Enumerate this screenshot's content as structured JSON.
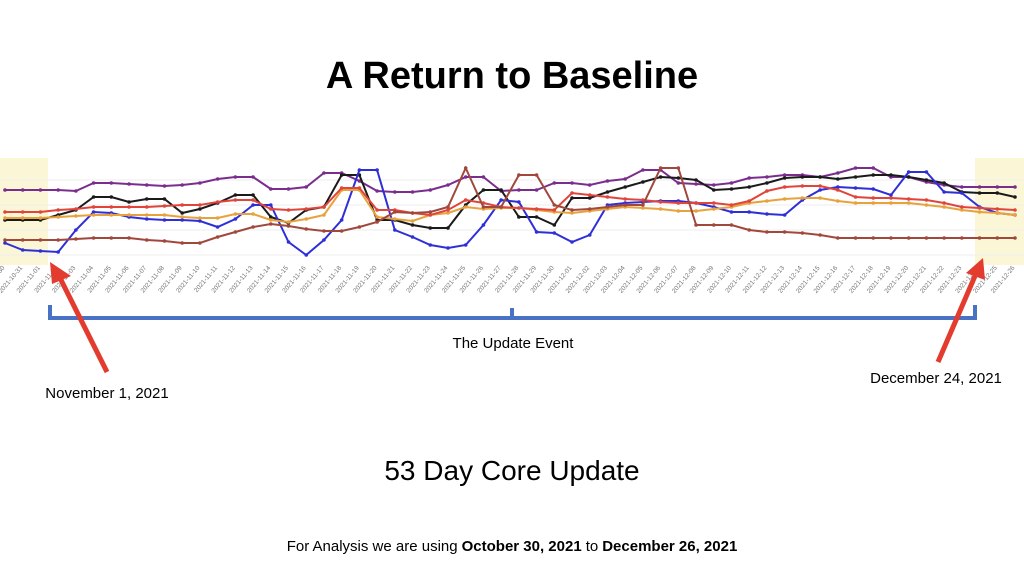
{
  "slide": {
    "title": "A Return to Baseline",
    "bracket_label": "The Update Event",
    "annotations": [
      "November 1, 2021",
      "December 24, 2021"
    ],
    "subtitle": "53 Day Core Update",
    "footer": {
      "prefix": "For Analysis we are using",
      "start": "October 30, 2021",
      "joiner": "to",
      "end": "December 26, 2021"
    }
  },
  "chart_data": {
    "type": "line",
    "ylim": [
      0,
      105
    ],
    "x": [
      "2021-10-30",
      "2021-10-31",
      "2021-11-01",
      "2021-11-02",
      "2021-11-03",
      "2021-11-04",
      "2021-11-05",
      "2021-11-06",
      "2021-11-07",
      "2021-11-08",
      "2021-11-09",
      "2021-11-10",
      "2021-11-11",
      "2021-11-12",
      "2021-11-13",
      "2021-11-14",
      "2021-11-15",
      "2021-11-16",
      "2021-11-17",
      "2021-11-18",
      "2021-11-19",
      "2021-11-20",
      "2021-11-21",
      "2021-11-22",
      "2021-11-23",
      "2021-11-24",
      "2021-11-25",
      "2021-11-26",
      "2021-11-27",
      "2021-11-28",
      "2021-11-29",
      "2021-11-30",
      "2021-12-01",
      "2021-12-02",
      "2021-12-03",
      "2021-12-04",
      "2021-12-05",
      "2021-12-06",
      "2021-12-07",
      "2021-12-08",
      "2021-12-09",
      "2021-12-10",
      "2021-12-11",
      "2021-12-12",
      "2021-12-13",
      "2021-12-14",
      "2021-12-15",
      "2021-12-16",
      "2021-12-17",
      "2021-12-18",
      "2021-12-19",
      "2021-12-20",
      "2021-12-21",
      "2021-12-22",
      "2021-12-23",
      "2021-12-24",
      "2021-12-25",
      "2021-12-26"
    ],
    "series": [
      {
        "color": "#7b2d8e",
        "values": [
          75,
          75,
          75,
          75,
          74,
          82,
          82,
          81,
          80,
          79,
          80,
          82,
          86,
          88,
          88,
          76,
          76,
          78,
          92,
          92,
          84,
          74,
          73,
          73,
          75,
          80,
          88,
          88,
          74,
          75,
          75,
          82,
          82,
          80,
          84,
          86,
          95,
          95,
          82,
          81,
          80,
          82,
          87,
          88,
          90,
          90,
          88,
          92,
          97,
          97,
          88,
          88,
          83,
          80,
          78,
          78,
          78,
          78
        ]
      },
      {
        "color": "#1a1a1a",
        "values": [
          45,
          45,
          45,
          50,
          55,
          68,
          68,
          63,
          66,
          66,
          52,
          56,
          62,
          70,
          70,
          48,
          42,
          55,
          58,
          90,
          90,
          45,
          45,
          40,
          37,
          37,
          60,
          75,
          75,
          48,
          48,
          40,
          67,
          67,
          73,
          78,
          83,
          88,
          87,
          85,
          75,
          76,
          78,
          82,
          87,
          88,
          88,
          86,
          88,
          90,
          90,
          88,
          85,
          82,
          73,
          72,
          72,
          68
        ]
      },
      {
        "color": "#2f2fd8",
        "values": [
          22,
          15,
          14,
          13,
          35,
          53,
          52,
          48,
          46,
          45,
          45,
          44,
          38,
          46,
          60,
          60,
          23,
          10,
          25,
          45,
          95,
          95,
          35,
          28,
          20,
          17,
          20,
          40,
          65,
          63,
          33,
          32,
          23,
          30,
          60,
          62,
          63,
          64,
          64,
          62,
          58,
          53,
          53,
          51,
          50,
          65,
          75,
          78,
          77,
          76,
          70,
          93,
          93,
          73,
          72,
          58,
          52,
          50
        ]
      },
      {
        "color": "#e8a23c",
        "values": [
          47,
          47,
          47,
          48,
          49,
          50,
          50,
          50,
          50,
          50,
          48,
          47,
          47,
          51,
          51,
          45,
          43,
          46,
          50,
          75,
          75,
          48,
          46,
          44,
          50,
          52,
          58,
          56,
          57,
          57,
          55,
          53,
          52,
          54,
          56,
          58,
          57,
          56,
          54,
          54,
          56,
          58,
          62,
          64,
          66,
          67,
          67,
          64,
          62,
          62,
          62,
          62,
          60,
          58,
          55,
          53,
          52,
          50
        ]
      },
      {
        "color": "#e0443a",
        "values": [
          53,
          53,
          53,
          55,
          56,
          58,
          58,
          58,
          58,
          59,
          60,
          60,
          63,
          65,
          65,
          56,
          55,
          56,
          58,
          77,
          77,
          55,
          55,
          52,
          50,
          55,
          65,
          62,
          58,
          57,
          56,
          55,
          72,
          70,
          68,
          66,
          65,
          63,
          62,
          62,
          62,
          60,
          64,
          74,
          78,
          79,
          79,
          75,
          68,
          67,
          67,
          66,
          65,
          62,
          58,
          57,
          56,
          55
        ]
      },
      {
        "color": "#a0483c",
        "values": [
          25,
          25,
          25,
          25,
          26,
          27,
          27,
          27,
          25,
          24,
          22,
          22,
          28,
          33,
          38,
          41,
          39,
          36,
          34,
          34,
          38,
          43,
          53,
          52,
          53,
          58,
          97,
          58,
          58,
          90,
          90,
          60,
          55,
          56,
          58,
          60,
          60,
          97,
          97,
          40,
          40,
          40,
          35,
          33,
          33,
          32,
          30,
          27,
          27,
          27,
          27,
          27,
          27,
          27,
          27,
          27,
          27,
          27
        ]
      }
    ]
  }
}
